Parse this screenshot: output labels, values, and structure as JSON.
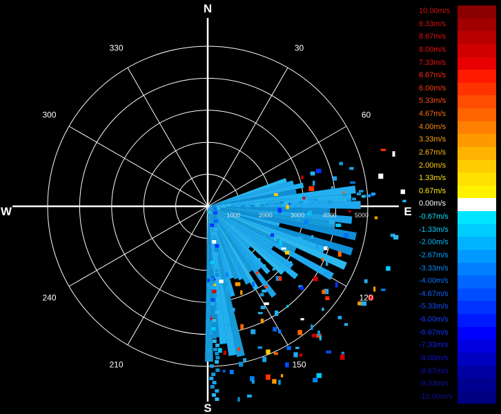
{
  "chart_data": {
    "type": "polar-scatter",
    "compass": {
      "north": "N",
      "east": "E",
      "south": "S",
      "west": "W"
    },
    "angle_labels": [
      "30",
      "60",
      "120",
      "150",
      "210",
      "240",
      "300",
      "330"
    ],
    "range_labels": [
      "1000",
      "2000",
      "3000",
      "4000",
      "5000"
    ],
    "legend": {
      "unit": "m/s",
      "entries": [
        {
          "label": "10.00m/s",
          "color": "#8b0000",
          "text_color": "#d01010"
        },
        {
          "label": "9.33m/s",
          "color": "#a00000",
          "text_color": "#d81010"
        },
        {
          "label": "8.67m/s",
          "color": "#b80000",
          "text_color": "#e01010"
        },
        {
          "label": "8.00m/s",
          "color": "#d00000",
          "text_color": "#e81010"
        },
        {
          "label": "7.33m/s",
          "color": "#e80000",
          "text_color": "#f01010"
        },
        {
          "label": "6.67m/s",
          "color": "#ff1a00",
          "text_color": "#ff2a10"
        },
        {
          "label": "6.00m/s",
          "color": "#ff3300",
          "text_color": "#ff3a10"
        },
        {
          "label": "5.33m/s",
          "color": "#ff4d00",
          "text_color": "#ff5010"
        },
        {
          "label": "4.67m/s",
          "color": "#ff6600",
          "text_color": "#ff6a10"
        },
        {
          "label": "4.00m/s",
          "color": "#ff8000",
          "text_color": "#ff8810"
        },
        {
          "label": "3.33m/s",
          "color": "#ff9900",
          "text_color": "#ffa010"
        },
        {
          "label": "2.67m/s",
          "color": "#ffb300",
          "text_color": "#ffb810"
        },
        {
          "label": "2.00m/s",
          "color": "#ffcc00",
          "text_color": "#ffcc10"
        },
        {
          "label": "1.33m/s",
          "color": "#ffe000",
          "text_color": "#ffe010"
        },
        {
          "label": "0.67m/s",
          "color": "#fff200",
          "text_color": "#fff010"
        },
        {
          "label": "0.00m/s",
          "color": "#ffffff",
          "text_color": "#ffffff"
        },
        {
          "label": "-0.67m/s",
          "color": "#00e5ff",
          "text_color": "#00e5ff"
        },
        {
          "label": "-1.33m/s",
          "color": "#00ccff",
          "text_color": "#00d0ff"
        },
        {
          "label": "-2.00m/s",
          "color": "#00b3ff",
          "text_color": "#00b8ff"
        },
        {
          "label": "-2.67m/s",
          "color": "#0099ff",
          "text_color": "#00a0ff"
        },
        {
          "label": "-3.33m/s",
          "color": "#0080ff",
          "text_color": "#0090ff"
        },
        {
          "label": "-4.00m/s",
          "color": "#0066ff",
          "text_color": "#0070ff"
        },
        {
          "label": "-4.67m/s",
          "color": "#004dff",
          "text_color": "#1060ff"
        },
        {
          "label": "-5.33m/s",
          "color": "#0033ff",
          "text_color": "#1050ff"
        },
        {
          "label": "-6.00m/s",
          "color": "#001aff",
          "text_color": "#1040ff"
        },
        {
          "label": "-6.67m/s",
          "color": "#0000ff",
          "text_color": "#1030ff"
        },
        {
          "label": "-7.33m/s",
          "color": "#0000e0",
          "text_color": "#1020f0"
        },
        {
          "label": "-8.00m/s",
          "color": "#0000c0",
          "text_color": "#1010d0"
        },
        {
          "label": "-8.67m/s",
          "color": "#0000a0",
          "text_color": "#1010b8"
        },
        {
          "label": "-9.33m/s",
          "color": "#000090",
          "text_color": "#1010a8"
        },
        {
          "label": "-10.00m/s",
          "color": "#000080",
          "text_color": "#101098"
        }
      ]
    },
    "colors": {
      "background": "#000000",
      "grid": "#ffffff",
      "dominant_data": "#1aa3e8"
    },
    "data_sector": "east to south (approx. 70°–180°), velocities mostly -1.33 to -2.67 m/s with scattered outliers"
  }
}
